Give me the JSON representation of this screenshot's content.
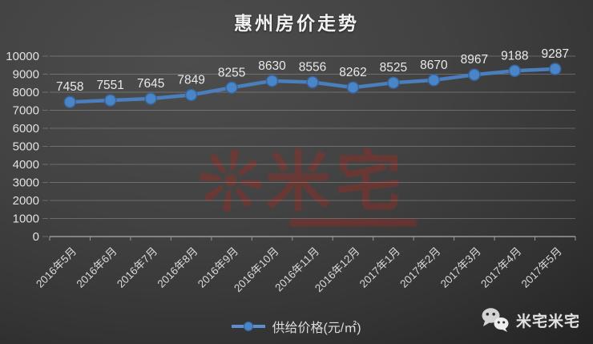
{
  "title": "惠州房价走势",
  "chart_data": {
    "type": "line",
    "title": "惠州房价走势",
    "categories": [
      "2016年5月",
      "2016年6月",
      "2016年7月",
      "2016年8月",
      "2016年9月",
      "2016年10月",
      "2016年11月",
      "2016年12月",
      "2017年1月",
      "2017年2月",
      "2017年3月",
      "2017年4月",
      "2017年5月"
    ],
    "series": [
      {
        "name": "供给价格(元/㎡)",
        "values": [
          7458,
          7551,
          7645,
          7849,
          8255,
          8630,
          8556,
          8262,
          8525,
          8670,
          8967,
          9188,
          9287
        ]
      }
    ],
    "xlabel": "",
    "ylabel": "",
    "ylim": [
      0,
      10000
    ],
    "ytick_step": 1000,
    "grid": true,
    "legend_position": "bottom",
    "colors": {
      "line": "#4a7ebd",
      "marker_fill": "#4a85c7",
      "marker_stroke": "#39639b",
      "grid": "rgba(200,200,200,0.32)",
      "axis": "#9a9a9a",
      "tick_label": "#e0e0e0",
      "data_label": "#e9e9e9"
    }
  },
  "legend": {
    "label": "供给价格(元/㎡)"
  },
  "watermark": {
    "seal": "❊",
    "text": "米宅"
  },
  "footer": {
    "wechat_label": "米宅米宅"
  }
}
